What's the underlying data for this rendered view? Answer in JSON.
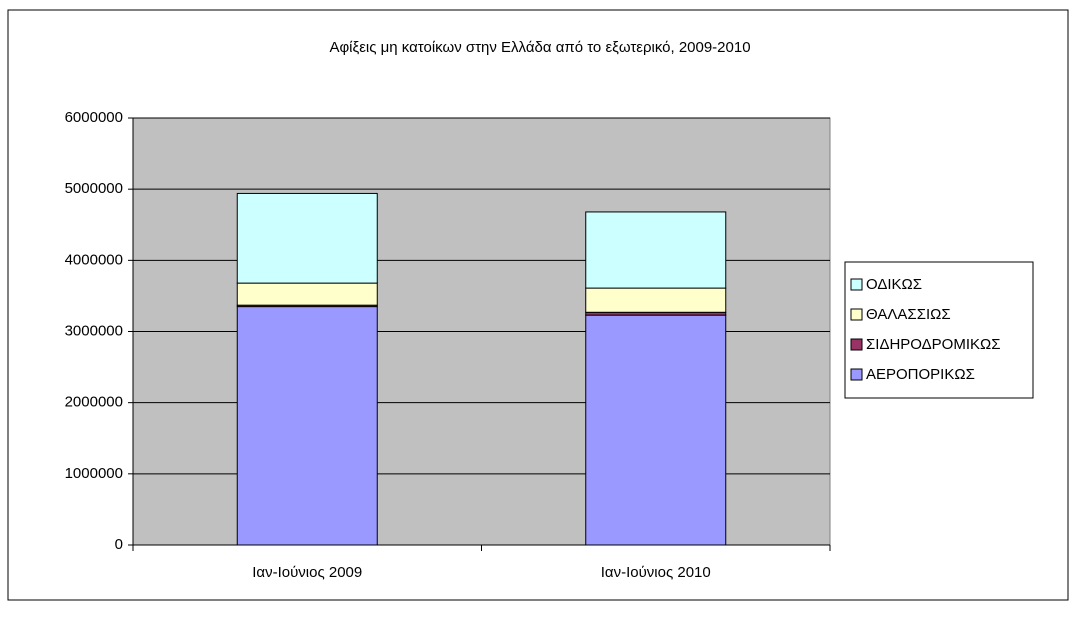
{
  "chart_data": {
    "type": "stacked_bar",
    "title": "Αφίξεις μη κατοίκων στην Ελλάδα από το εξωτερικό, 2009-2010",
    "categories": [
      "Ιαν-Ιούνιος 2009",
      "Ιαν-Ιούνιος 2010"
    ],
    "series": [
      {
        "name": "ΑΕΡΟΠΟΡΙΚΩΣ",
        "color": "#9999ff",
        "values": [
          3350000,
          3230000
        ]
      },
      {
        "name": "ΣΙΔΗΡΟΔΡΟΜΙΚΩΣ",
        "color": "#993366",
        "values": [
          20000,
          40000
        ]
      },
      {
        "name": "ΘΑΛΑΣΣΙΩΣ",
        "color": "#ffffcc",
        "values": [
          310000,
          340000
        ]
      },
      {
        "name": "ΟΔΙΚΩΣ",
        "color": "#ccffff",
        "values": [
          1260000,
          1070000
        ]
      }
    ],
    "ylim": [
      0,
      6000000
    ],
    "yticks": [
      0,
      1000000,
      2000000,
      3000000,
      4000000,
      5000000,
      6000000
    ],
    "grid": true,
    "legend": "right"
  }
}
